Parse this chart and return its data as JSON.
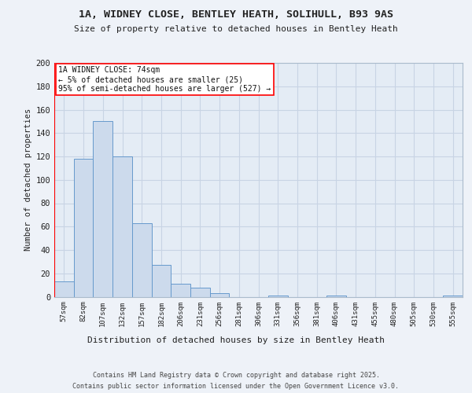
{
  "title1": "1A, WIDNEY CLOSE, BENTLEY HEATH, SOLIHULL, B93 9AS",
  "title2": "Size of property relative to detached houses in Bentley Heath",
  "xlabel": "Distribution of detached houses by size in Bentley Heath",
  "ylabel": "Number of detached properties",
  "categories": [
    "57sqm",
    "82sqm",
    "107sqm",
    "132sqm",
    "157sqm",
    "182sqm",
    "206sqm",
    "231sqm",
    "256sqm",
    "281sqm",
    "306sqm",
    "331sqm",
    "356sqm",
    "381sqm",
    "406sqm",
    "431sqm",
    "455sqm",
    "480sqm",
    "505sqm",
    "530sqm",
    "555sqm"
  ],
  "values": [
    13,
    118,
    150,
    120,
    63,
    27,
    11,
    8,
    3,
    0,
    0,
    1,
    0,
    0,
    1,
    0,
    0,
    0,
    0,
    0,
    1
  ],
  "bar_color": "#ccdaec",
  "bar_edge_color": "#6699cc",
  "ylim": [
    0,
    200
  ],
  "yticks": [
    0,
    20,
    40,
    60,
    80,
    100,
    120,
    140,
    160,
    180,
    200
  ],
  "annotation_title": "1A WIDNEY CLOSE: 74sqm",
  "annotation_line1": "← 5% of detached houses are smaller (25)",
  "annotation_line2": "95% of semi-detached houses are larger (527) →",
  "footer1": "Contains HM Land Registry data © Crown copyright and database right 2025.",
  "footer2": "Contains public sector information licensed under the Open Government Licence v3.0.",
  "bg_color": "#eef2f8",
  "plot_bg_color": "#e4ecf5",
  "grid_color": "#c8d4e4"
}
